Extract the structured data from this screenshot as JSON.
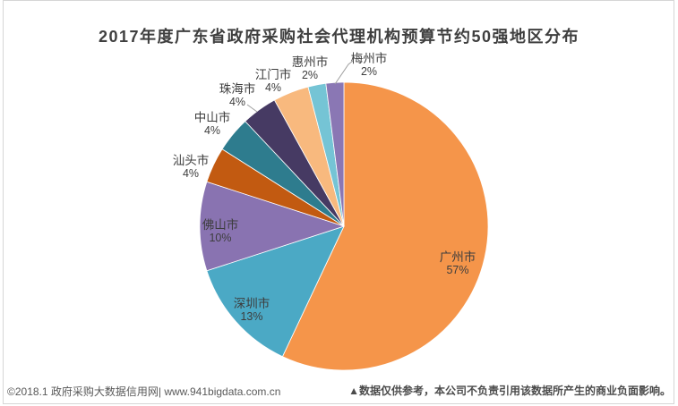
{
  "title": "2017年度广东省政府采购社会代理机构预算节约50强地区分布",
  "chart_data": {
    "type": "pie",
    "title": "2017年度广东省政府采购社会代理机构预算节约50强地区分布",
    "start_angle_deg": 0,
    "direction": "clockwise",
    "legend": "none",
    "pct_suffix": "%",
    "slices": [
      {
        "label": "广州市",
        "value_pct": 57,
        "color": "#F5954A",
        "label_position": "inside",
        "leader_line": false
      },
      {
        "label": "深圳市",
        "value_pct": 13,
        "color": "#4BA9C5",
        "label_position": "inside",
        "leader_line": false
      },
      {
        "label": "佛山市",
        "value_pct": 10,
        "color": "#8973B1",
        "label_position": "inside",
        "leader_line": false
      },
      {
        "label": "汕头市",
        "value_pct": 4,
        "color": "#C25A11",
        "label_position": "outside",
        "leader_line": false
      },
      {
        "label": "中山市",
        "value_pct": 4,
        "color": "#2E7C8E",
        "label_position": "outside",
        "leader_line": false
      },
      {
        "label": "珠海市",
        "value_pct": 4,
        "color": "#463A63",
        "label_position": "outside",
        "leader_line": true
      },
      {
        "label": "江门市",
        "value_pct": 4,
        "color": "#F8B97E",
        "label_position": "outside",
        "leader_line": false
      },
      {
        "label": "惠州市",
        "value_pct": 2,
        "color": "#75C4D5",
        "label_position": "outside",
        "leader_line": false
      },
      {
        "label": "梅州市",
        "value_pct": 2,
        "color": "#8A77B4",
        "label_position": "outside",
        "leader_line": true
      }
    ]
  },
  "footer": {
    "left": "©2018.1 政府采购大数据信用网| www.941bigdata.com.cn",
    "right": "▲数据仅供参考，本公司不负责引用该数据所产生的商业负面影响。"
  },
  "colors": {
    "title_text": "#3F3F3F",
    "label_text": "#3D3D3D",
    "footer_left_text": "#595959",
    "footer_right_text": "#4B4B4B",
    "frame_border": "#D6D6D6",
    "leader_line": "#9E9E9E",
    "background": "#FFFFFF"
  }
}
